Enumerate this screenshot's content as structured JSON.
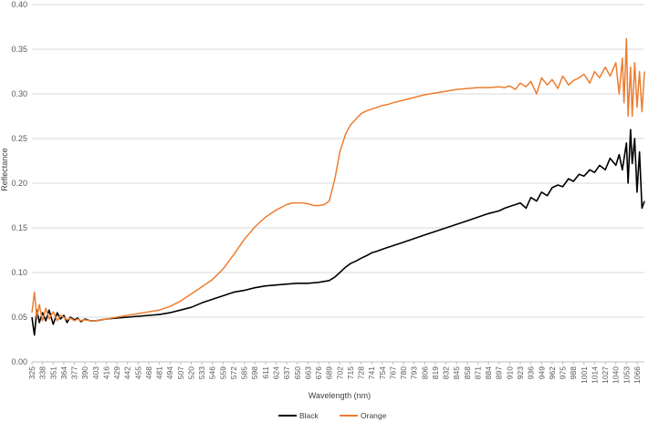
{
  "chart_data": {
    "type": "line",
    "title": "",
    "xlabel": "Wavelength (nm)",
    "ylabel": "Reflectance",
    "ylim": [
      0,
      0.4
    ],
    "y_ticks": [
      "0.00",
      "0.05",
      "0.10",
      "0.15",
      "0.20",
      "0.25",
      "0.30",
      "0.35",
      "0.40"
    ],
    "x_ticks": [
      "325",
      "338",
      "351",
      "364",
      "377",
      "390",
      "403",
      "416",
      "429",
      "442",
      "455",
      "468",
      "481",
      "494",
      "507",
      "520",
      "533",
      "546",
      "559",
      "572",
      "585",
      "598",
      "611",
      "624",
      "637",
      "650",
      "663",
      "676",
      "689",
      "702",
      "715",
      "728",
      "741",
      "754",
      "767",
      "780",
      "793",
      "806",
      "819",
      "832",
      "845",
      "858",
      "871",
      "884",
      "897",
      "910",
      "923",
      "936",
      "949",
      "962",
      "975",
      "988",
      "1001",
      "1014",
      "1027",
      "1040",
      "1053",
      "1066"
    ],
    "x_range": [
      325,
      1075
    ],
    "grid": "horizontal",
    "legend_position": "bottom",
    "series": [
      {
        "name": "Black",
        "color": "#000000",
        "x": [
          325,
          328,
          331,
          334,
          338,
          342,
          346,
          351,
          356,
          360,
          364,
          368,
          372,
          377,
          381,
          385,
          390,
          396,
          403,
          410,
          416,
          429,
          442,
          455,
          468,
          481,
          494,
          507,
          520,
          533,
          546,
          559,
          572,
          585,
          598,
          611,
          624,
          637,
          650,
          663,
          676,
          689,
          696,
          702,
          709,
          715,
          722,
          728,
          735,
          741,
          748,
          754,
          760,
          767,
          780,
          793,
          806,
          819,
          832,
          845,
          858,
          871,
          884,
          897,
          904,
          910,
          917,
          923,
          930,
          936,
          943,
          949,
          956,
          962,
          969,
          975,
          982,
          988,
          995,
          1001,
          1008,
          1014,
          1020,
          1027,
          1033,
          1040,
          1044,
          1048,
          1053,
          1055,
          1058,
          1060,
          1063,
          1066,
          1069,
          1072,
          1075
        ],
        "y": [
          0.05,
          0.03,
          0.058,
          0.044,
          0.055,
          0.046,
          0.058,
          0.042,
          0.055,
          0.048,
          0.052,
          0.044,
          0.05,
          0.047,
          0.049,
          0.045,
          0.048,
          0.046,
          0.046,
          0.047,
          0.048,
          0.049,
          0.05,
          0.051,
          0.052,
          0.053,
          0.055,
          0.058,
          0.061,
          0.066,
          0.07,
          0.074,
          0.078,
          0.08,
          0.083,
          0.085,
          0.086,
          0.087,
          0.088,
          0.088,
          0.089,
          0.091,
          0.095,
          0.1,
          0.106,
          0.11,
          0.113,
          0.116,
          0.119,
          0.122,
          0.124,
          0.126,
          0.128,
          0.13,
          0.134,
          0.138,
          0.142,
          0.146,
          0.15,
          0.154,
          0.158,
          0.162,
          0.166,
          0.169,
          0.172,
          0.174,
          0.176,
          0.178,
          0.172,
          0.184,
          0.18,
          0.19,
          0.186,
          0.195,
          0.198,
          0.196,
          0.205,
          0.202,
          0.21,
          0.208,
          0.215,
          0.212,
          0.22,
          0.215,
          0.228,
          0.22,
          0.232,
          0.215,
          0.245,
          0.2,
          0.26,
          0.222,
          0.25,
          0.19,
          0.235,
          0.172,
          0.18
        ]
      },
      {
        "name": "Orange",
        "color": "#ED7D31",
        "x": [
          325,
          328,
          331,
          334,
          338,
          342,
          346,
          351,
          356,
          360,
          364,
          368,
          372,
          377,
          381,
          385,
          390,
          396,
          403,
          410,
          416,
          429,
          442,
          455,
          468,
          481,
          494,
          507,
          520,
          533,
          546,
          559,
          572,
          585,
          598,
          611,
          624,
          637,
          644,
          650,
          657,
          663,
          670,
          676,
          683,
          689,
          696,
          702,
          709,
          715,
          722,
          728,
          735,
          741,
          748,
          754,
          760,
          767,
          780,
          793,
          806,
          819,
          832,
          845,
          858,
          871,
          884,
          897,
          904,
          910,
          917,
          923,
          930,
          936,
          943,
          949,
          956,
          962,
          969,
          975,
          982,
          988,
          995,
          1001,
          1008,
          1014,
          1020,
          1027,
          1033,
          1040,
          1044,
          1048,
          1050,
          1053,
          1055,
          1058,
          1060,
          1063,
          1066,
          1069,
          1072,
          1075
        ],
        "y": [
          0.055,
          0.078,
          0.05,
          0.064,
          0.046,
          0.06,
          0.048,
          0.056,
          0.046,
          0.052,
          0.05,
          0.047,
          0.049,
          0.046,
          0.048,
          0.046,
          0.047,
          0.046,
          0.046,
          0.047,
          0.048,
          0.05,
          0.052,
          0.054,
          0.056,
          0.058,
          0.062,
          0.068,
          0.076,
          0.084,
          0.092,
          0.104,
          0.12,
          0.137,
          0.151,
          0.162,
          0.17,
          0.176,
          0.178,
          0.178,
          0.178,
          0.177,
          0.175,
          0.175,
          0.176,
          0.18,
          0.205,
          0.235,
          0.255,
          0.265,
          0.272,
          0.278,
          0.281,
          0.283,
          0.285,
          0.287,
          0.288,
          0.29,
          0.293,
          0.296,
          0.299,
          0.301,
          0.303,
          0.305,
          0.306,
          0.307,
          0.307,
          0.308,
          0.307,
          0.309,
          0.305,
          0.312,
          0.308,
          0.314,
          0.3,
          0.318,
          0.31,
          0.316,
          0.306,
          0.32,
          0.31,
          0.315,
          0.318,
          0.322,
          0.312,
          0.325,
          0.318,
          0.33,
          0.32,
          0.335,
          0.3,
          0.34,
          0.29,
          0.362,
          0.275,
          0.33,
          0.275,
          0.335,
          0.285,
          0.325,
          0.28,
          0.325
        ]
      }
    ]
  }
}
